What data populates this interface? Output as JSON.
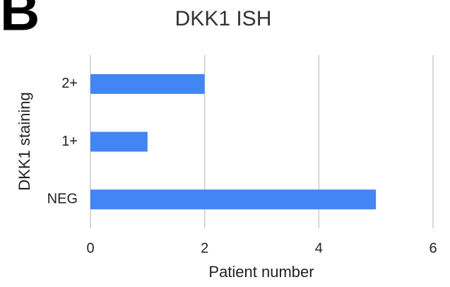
{
  "chart_data": {
    "type": "bar",
    "orientation": "horizontal",
    "panel_label": "B",
    "title": "DKK1 ISH",
    "categories": [
      "2+",
      "1+",
      "NEG"
    ],
    "values": [
      2,
      1,
      5
    ],
    "color": "#4285f4",
    "xlabel": "Patient number",
    "ylabel": "DKK1 staining",
    "xlim": [
      0,
      6
    ],
    "xticks": [
      0,
      2,
      4,
      6
    ],
    "grid": true
  }
}
